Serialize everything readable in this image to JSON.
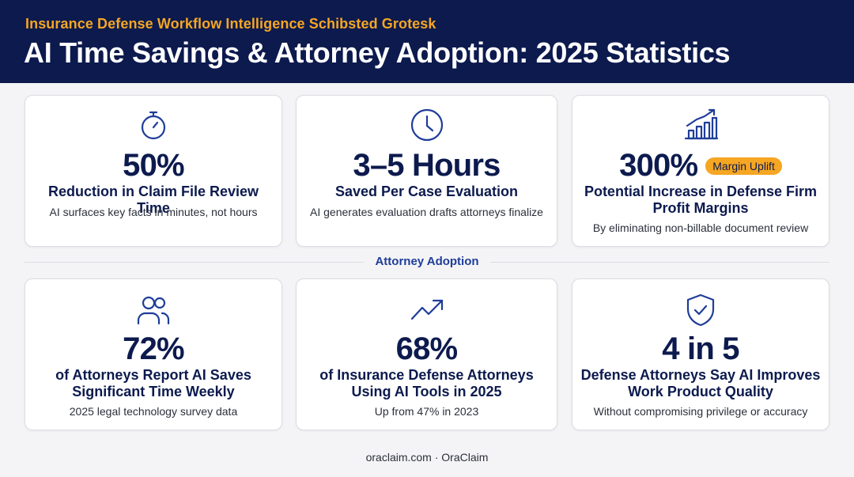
{
  "header": {
    "eyebrow": "Insurance Defense Workflow Intelligence Schibsted Grotesk",
    "title": "AI Time Savings & Attorney Adoption: 2025 Statistics"
  },
  "colors": {
    "header_bg": "#0c1a4e",
    "accent": "#f5a623",
    "icon": "#1f3d99"
  },
  "time_savings": [
    {
      "icon": "stopwatch-icon",
      "stat": "50%",
      "label": "Reduction in Claim File Review Time",
      "sub": "AI surfaces key facts in minutes, not hours"
    },
    {
      "icon": "clock-icon",
      "stat": "3–5 Hours",
      "label": "Saved Per Case Evaluation",
      "sub": "AI generates evaluation drafts attorneys finalize"
    },
    {
      "icon": "growth-chart-icon",
      "stat": "300%",
      "badge": "Margin Uplift",
      "label": "Potential Increase in Defense Firm Profit Margins",
      "sub": "By eliminating non-billable document review"
    }
  ],
  "section_label": "Attorney Adoption",
  "adoption": [
    {
      "icon": "users-icon",
      "stat": "72%",
      "label": "of Attorneys Report AI Saves Significant Time Weekly",
      "sub": "2025 legal technology survey data"
    },
    {
      "icon": "trending-up-icon",
      "stat": "68%",
      "label": "of Insurance Defense Attorneys Using AI Tools in 2025",
      "sub": "Up from 47% in 2023"
    },
    {
      "icon": "shield-check-icon",
      "stat": "4 in 5",
      "label": "Defense Attorneys Say AI Improves Work Product Quality",
      "sub": "Without compromising privilege or accuracy"
    }
  ],
  "footer": "oraclaim.com · OraClaim"
}
